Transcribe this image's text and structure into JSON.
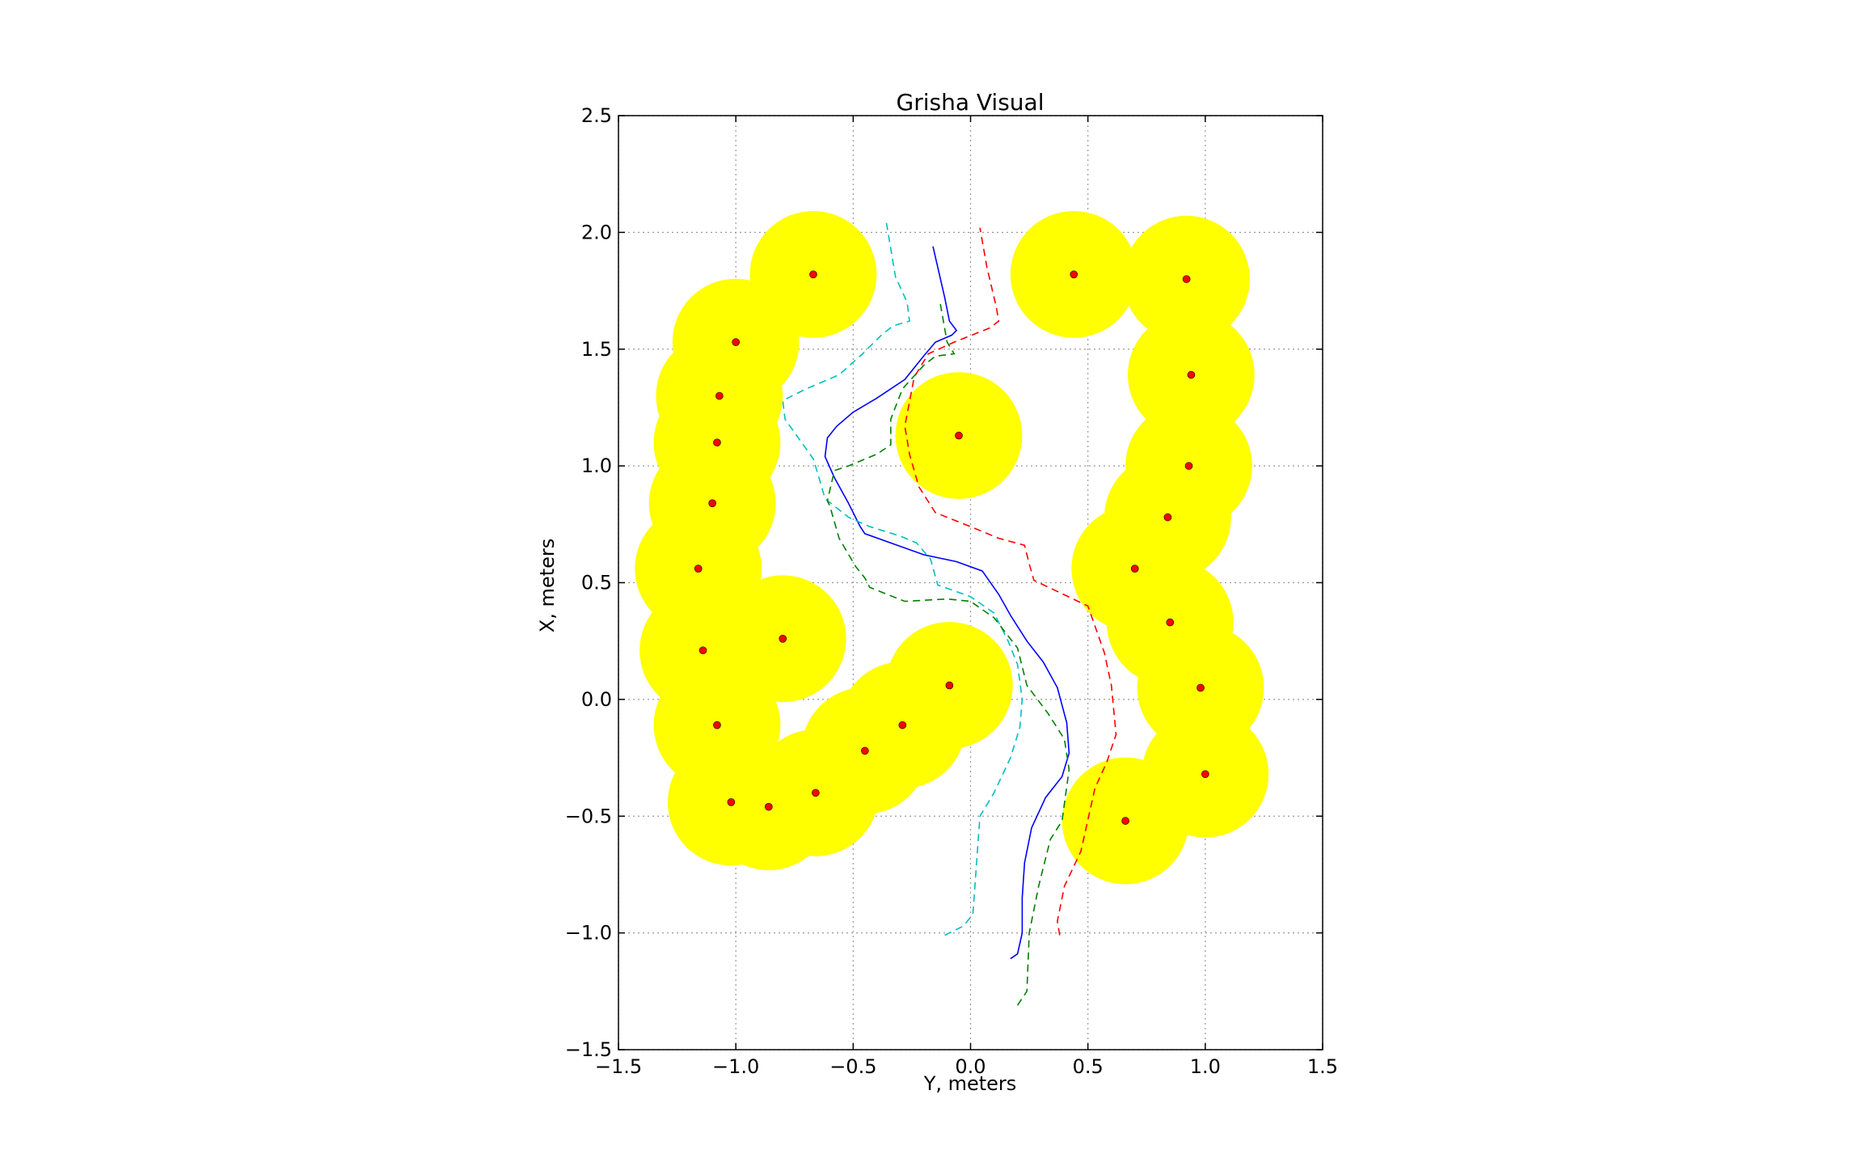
{
  "chart_data": {
    "type": "scatter",
    "title": "Grisha Visual",
    "xlabel": "Y, meters",
    "ylabel": "X, meters",
    "xlim": [
      -1.5,
      1.5
    ],
    "ylim": [
      -1.5,
      2.5
    ],
    "xticks": [
      -1.5,
      -1.0,
      -0.5,
      0.0,
      0.5,
      1.0,
      1.5
    ],
    "yticks": [
      -1.5,
      -1.0,
      -0.5,
      0.0,
      0.5,
      1.0,
      1.5,
      2.0,
      2.5
    ],
    "xtick_labels": [
      "−1.5",
      "−1.0",
      "−0.5",
      "0.0",
      "0.5",
      "1.0",
      "1.5"
    ],
    "ytick_labels": [
      "−1.5",
      "−1.0",
      "−0.5",
      "0.0",
      "0.5",
      "1.0",
      "1.5",
      "2.0",
      "2.5"
    ],
    "grid": true,
    "obstacle_radius": 0.27,
    "colors": {
      "obstacle": "#ffff00",
      "obstacle_center": "#ff0000",
      "path_blue": "#0000ff",
      "path_cyan": "#00bfbf",
      "path_red": "#ff0000",
      "path_green": "#008000",
      "grid": "#999999"
    },
    "obstacles": [
      [
        -0.67,
        1.82
      ],
      [
        -1.0,
        1.53
      ],
      [
        -1.07,
        1.3
      ],
      [
        -1.08,
        1.1
      ],
      [
        -1.1,
        0.84
      ],
      [
        -1.16,
        0.56
      ],
      [
        -1.14,
        0.21
      ],
      [
        -0.8,
        0.26
      ],
      [
        -1.08,
        -0.11
      ],
      [
        -1.02,
        -0.44
      ],
      [
        -0.86,
        -0.46
      ],
      [
        -0.66,
        -0.4
      ],
      [
        -0.45,
        -0.22
      ],
      [
        -0.29,
        -0.11
      ],
      [
        -0.09,
        0.06
      ],
      [
        -0.05,
        1.13
      ],
      [
        0.44,
        1.82
      ],
      [
        0.92,
        1.8
      ],
      [
        0.94,
        1.39
      ],
      [
        0.93,
        1.0
      ],
      [
        0.84,
        0.78
      ],
      [
        0.7,
        0.56
      ],
      [
        0.85,
        0.33
      ],
      [
        0.98,
        0.05
      ],
      [
        1.0,
        -0.32
      ],
      [
        0.66,
        -0.52
      ]
    ],
    "series": [
      {
        "style": "solid",
        "color": "path_blue",
        "points": [
          [
            0.17,
            -1.11
          ],
          [
            0.2,
            -1.09
          ],
          [
            0.22,
            -1.0
          ],
          [
            0.22,
            -0.85
          ],
          [
            0.23,
            -0.7
          ],
          [
            0.26,
            -0.55
          ],
          [
            0.32,
            -0.42
          ],
          [
            0.39,
            -0.33
          ],
          [
            0.42,
            -0.23
          ],
          [
            0.41,
            -0.1
          ],
          [
            0.37,
            0.05
          ],
          [
            0.31,
            0.16
          ],
          [
            0.24,
            0.25
          ],
          [
            0.17,
            0.36
          ],
          [
            0.12,
            0.45
          ],
          [
            0.05,
            0.55
          ],
          [
            -0.06,
            0.59
          ],
          [
            -0.2,
            0.62
          ],
          [
            -0.34,
            0.67
          ],
          [
            -0.45,
            0.71
          ],
          [
            -0.47,
            0.74
          ],
          [
            -0.52,
            0.84
          ],
          [
            -0.58,
            0.95
          ],
          [
            -0.62,
            1.04
          ],
          [
            -0.61,
            1.12
          ],
          [
            -0.57,
            1.17
          ],
          [
            -0.5,
            1.23
          ],
          [
            -0.4,
            1.29
          ],
          [
            -0.28,
            1.37
          ],
          [
            -0.2,
            1.47
          ],
          [
            -0.15,
            1.53
          ],
          [
            -0.08,
            1.56
          ],
          [
            -0.06,
            1.58
          ],
          [
            -0.09,
            1.62
          ],
          [
            -0.11,
            1.72
          ],
          [
            -0.16,
            1.94
          ]
        ]
      },
      {
        "style": "dashed",
        "color": "path_cyan",
        "points": [
          [
            -0.11,
            -1.01
          ],
          [
            -0.03,
            -0.97
          ],
          [
            0.01,
            -0.92
          ],
          [
            0.02,
            -0.78
          ],
          [
            0.04,
            -0.5
          ],
          [
            0.1,
            -0.4
          ],
          [
            0.17,
            -0.25
          ],
          [
            0.21,
            -0.12
          ],
          [
            0.22,
            0.0
          ],
          [
            0.2,
            0.15
          ],
          [
            0.16,
            0.25
          ],
          [
            0.1,
            0.37
          ],
          [
            0.0,
            0.44
          ],
          [
            -0.14,
            0.49
          ],
          [
            -0.17,
            0.6
          ],
          [
            -0.23,
            0.67
          ],
          [
            -0.3,
            0.7
          ],
          [
            -0.43,
            0.74
          ],
          [
            -0.52,
            0.78
          ],
          [
            -0.62,
            0.86
          ],
          [
            -0.64,
            0.93
          ],
          [
            -0.67,
            1.03
          ],
          [
            -0.79,
            1.2
          ],
          [
            -0.8,
            1.28
          ],
          [
            -0.7,
            1.33
          ],
          [
            -0.56,
            1.39
          ],
          [
            -0.46,
            1.48
          ],
          [
            -0.38,
            1.56
          ],
          [
            -0.33,
            1.6
          ],
          [
            -0.26,
            1.62
          ],
          [
            -0.27,
            1.7
          ],
          [
            -0.32,
            1.81
          ],
          [
            -0.36,
            2.05
          ]
        ]
      },
      {
        "style": "dashed",
        "color": "path_red",
        "points": [
          [
            0.38,
            -1.01
          ],
          [
            0.37,
            -0.95
          ],
          [
            0.4,
            -0.8
          ],
          [
            0.47,
            -0.65
          ],
          [
            0.53,
            -0.38
          ],
          [
            0.58,
            -0.27
          ],
          [
            0.62,
            -0.15
          ],
          [
            0.6,
            0.06
          ],
          [
            0.57,
            0.2
          ],
          [
            0.5,
            0.4
          ],
          [
            0.27,
            0.51
          ],
          [
            0.25,
            0.58
          ],
          [
            0.23,
            0.66
          ],
          [
            0.12,
            0.69
          ],
          [
            0.0,
            0.74
          ],
          [
            -0.15,
            0.8
          ],
          [
            -0.22,
            0.91
          ],
          [
            -0.26,
            1.05
          ],
          [
            -0.28,
            1.17
          ],
          [
            -0.24,
            1.38
          ],
          [
            -0.18,
            1.48
          ],
          [
            -0.07,
            1.53
          ],
          [
            0.08,
            1.59
          ],
          [
            0.12,
            1.62
          ],
          [
            0.11,
            1.68
          ],
          [
            0.07,
            1.85
          ],
          [
            0.04,
            2.02
          ]
        ]
      },
      {
        "style": "dashed",
        "color": "path_green",
        "points": [
          [
            0.2,
            -1.31
          ],
          [
            0.24,
            -1.25
          ],
          [
            0.25,
            -1.0
          ],
          [
            0.29,
            -0.8
          ],
          [
            0.34,
            -0.6
          ],
          [
            0.39,
            -0.52
          ],
          [
            0.42,
            -0.3
          ],
          [
            0.4,
            -0.17
          ],
          [
            0.33,
            -0.06
          ],
          [
            0.24,
            0.06
          ],
          [
            0.2,
            0.22
          ],
          [
            0.1,
            0.35
          ],
          [
            0.0,
            0.42
          ],
          [
            -0.1,
            0.43
          ],
          [
            -0.28,
            0.42
          ],
          [
            -0.43,
            0.48
          ],
          [
            -0.45,
            0.52
          ],
          [
            -0.49,
            0.57
          ],
          [
            -0.56,
            0.69
          ],
          [
            -0.6,
            0.83
          ],
          [
            -0.61,
            0.85
          ],
          [
            -0.58,
            0.98
          ],
          [
            -0.52,
            1.0
          ],
          [
            -0.4,
            1.05
          ],
          [
            -0.34,
            1.09
          ],
          [
            -0.34,
            1.2
          ],
          [
            -0.29,
            1.33
          ],
          [
            -0.2,
            1.43
          ],
          [
            -0.15,
            1.47
          ],
          [
            -0.07,
            1.48
          ],
          [
            -0.1,
            1.53
          ],
          [
            -0.13,
            1.7
          ]
        ]
      }
    ]
  }
}
